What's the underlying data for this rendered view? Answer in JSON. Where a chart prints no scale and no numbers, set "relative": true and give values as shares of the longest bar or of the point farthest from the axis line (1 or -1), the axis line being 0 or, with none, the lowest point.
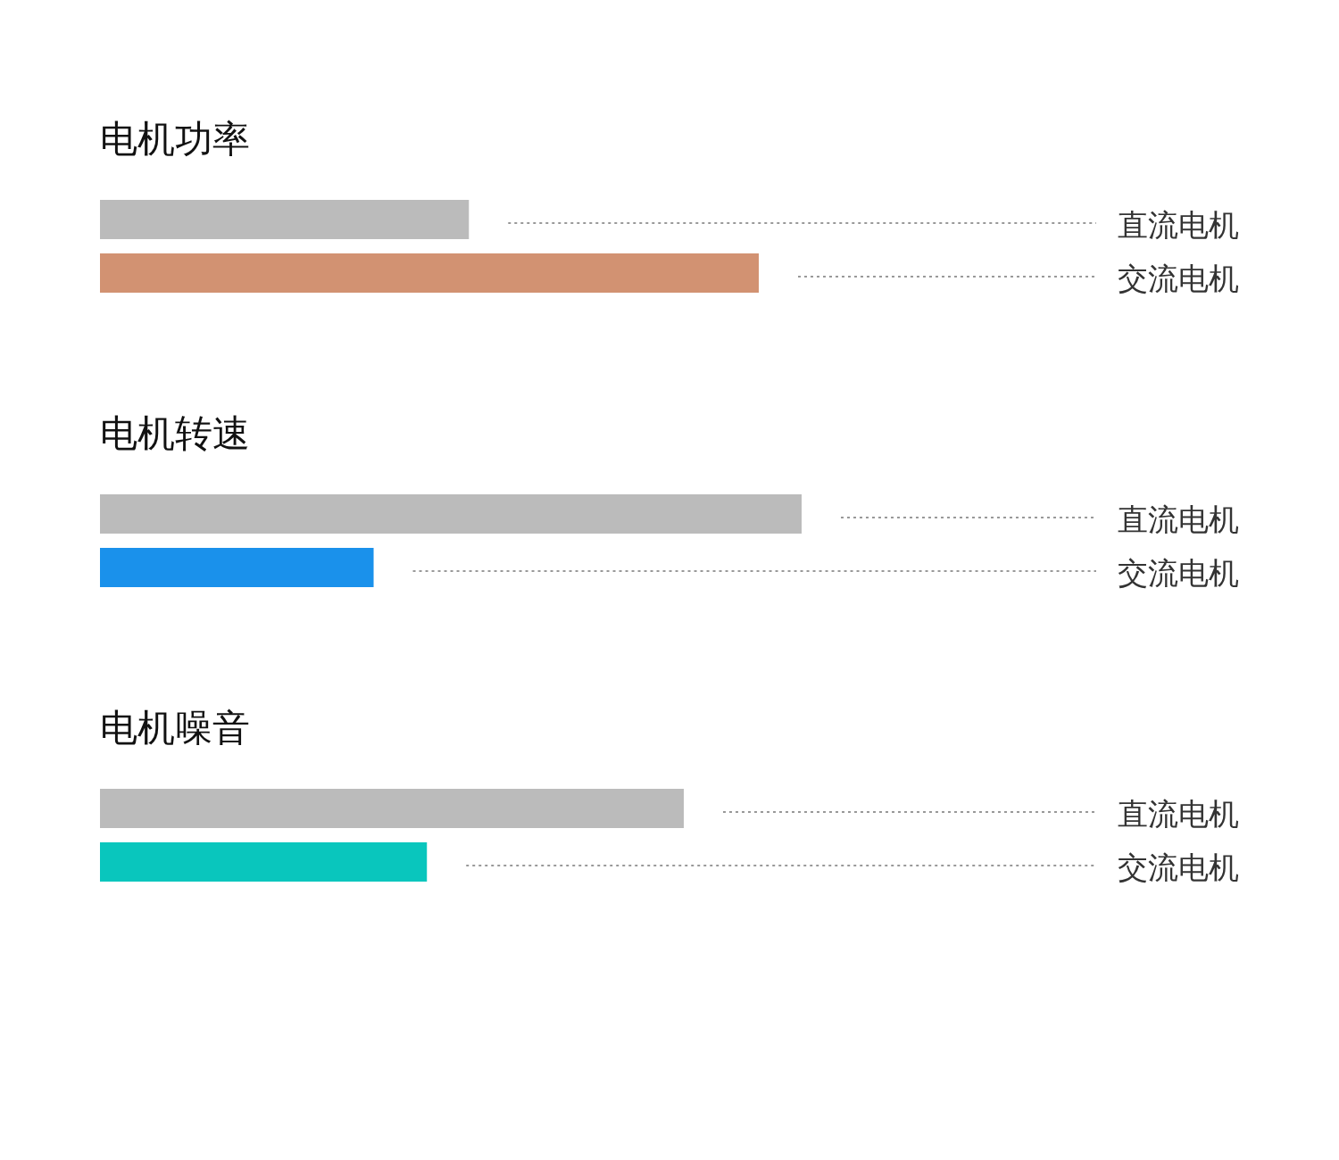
{
  "chart_data": [
    {
      "type": "bar",
      "orientation": "horizontal",
      "relative": true,
      "title": "电机功率",
      "categories": [
        "直流电机",
        "交流电机"
      ],
      "values": [
        0.56,
        1
      ],
      "colors": [
        "#bbbbbb",
        "#d29272"
      ]
    },
    {
      "type": "bar",
      "orientation": "horizontal",
      "relative": true,
      "title": "电机转速",
      "categories": [
        "直流电机",
        "交流电机"
      ],
      "values": [
        1,
        0.39
      ],
      "colors": [
        "#bbbbbb",
        "#1a91eb"
      ]
    },
    {
      "type": "bar",
      "orientation": "horizontal",
      "relative": true,
      "title": "电机噪音",
      "categories": [
        "直流电机",
        "交流电机"
      ],
      "values": [
        1,
        0.56
      ],
      "colors": [
        "#bbbbbb",
        "#09c6bd"
      ]
    }
  ]
}
